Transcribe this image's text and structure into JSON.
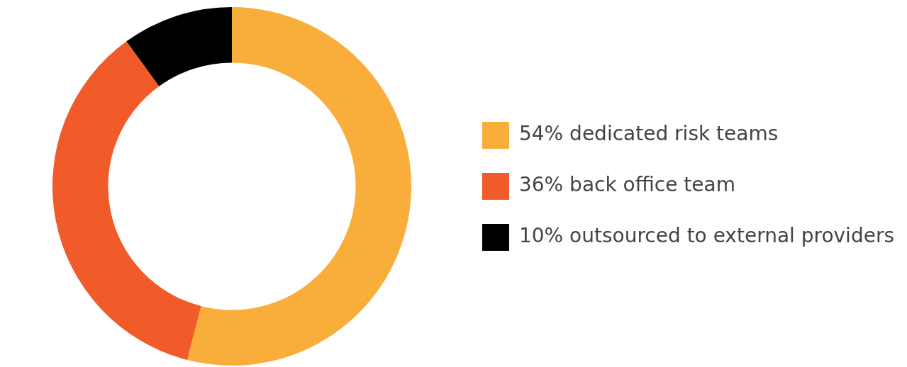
{
  "chart_data": {
    "type": "donut",
    "categories": [
      "dedicated risk teams",
      "back office team",
      "outsourced to external providers"
    ],
    "values": [
      54,
      36,
      10
    ],
    "value_labels": [
      "54%",
      "36%",
      "10%"
    ],
    "colors": [
      "#f9ae3b",
      "#f15a29",
      "#000000"
    ],
    "legend": "right"
  }
}
